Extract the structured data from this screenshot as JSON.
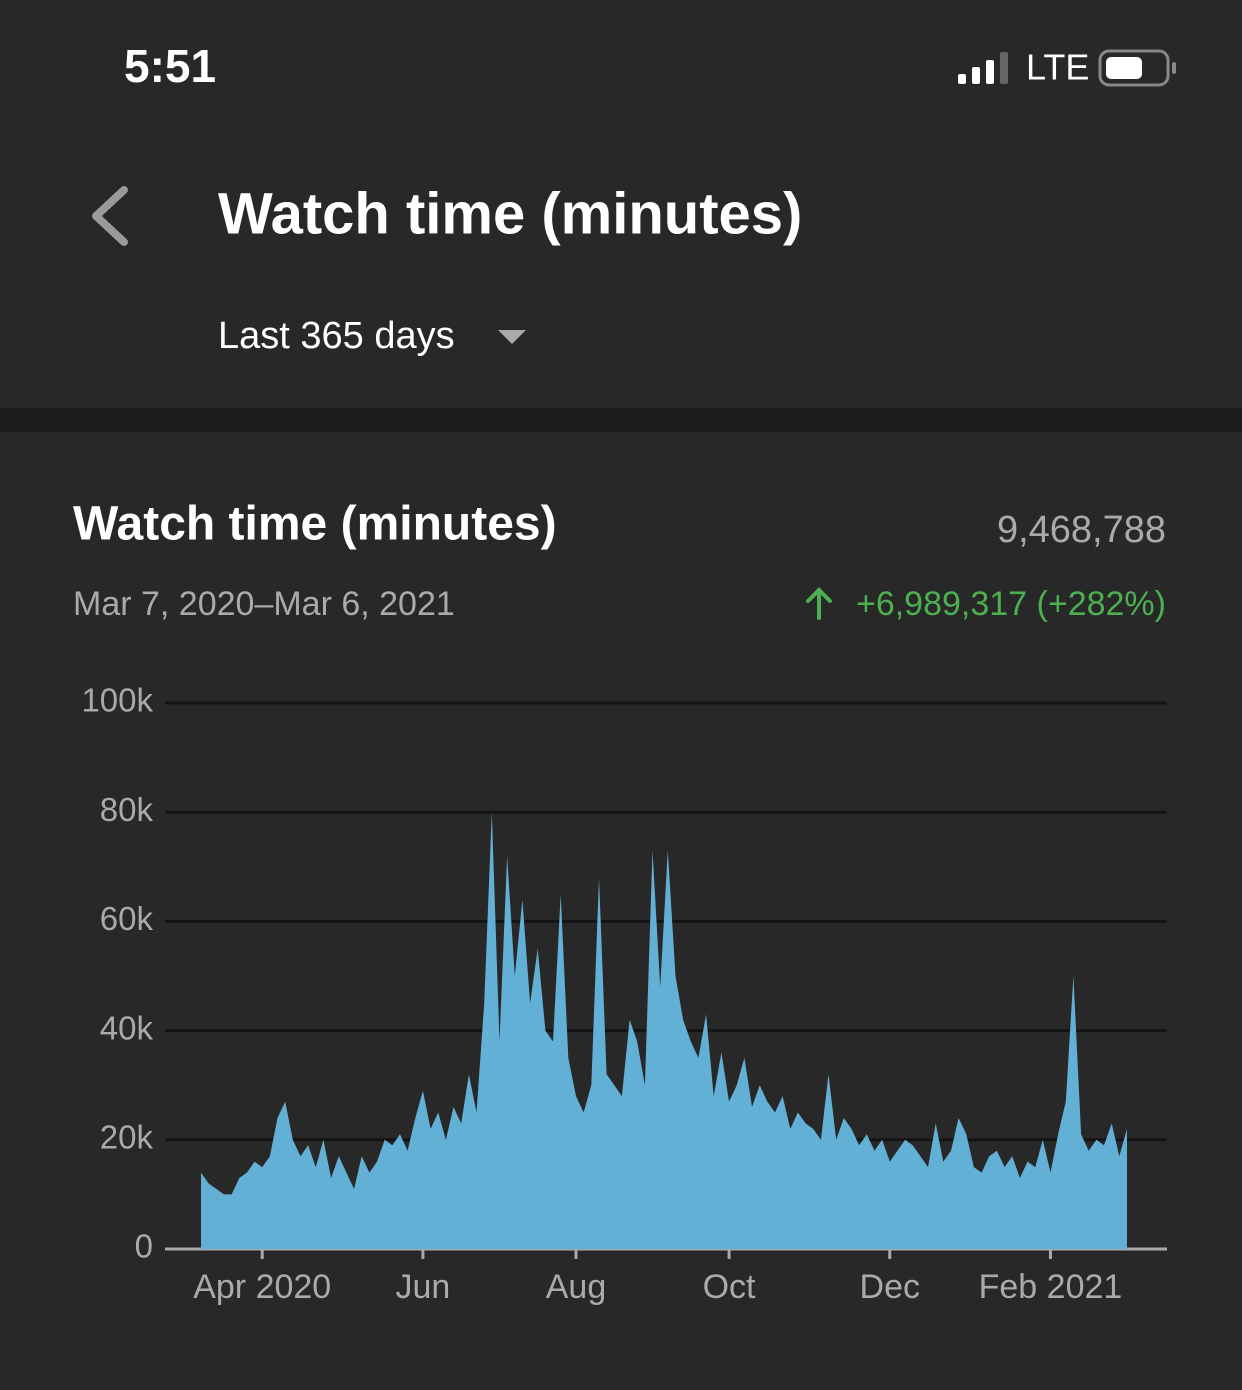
{
  "status_bar": {
    "time": "5:51",
    "network": "LTE"
  },
  "header": {
    "title": "Watch time (minutes)",
    "period": "Last 365 days"
  },
  "card": {
    "title": "Watch time (minutes)",
    "total": "9,468,788",
    "date_range": "Mar 7, 2020–Mar 6, 2021",
    "change": "+6,989,317 (+282%)"
  },
  "chart_data": {
    "type": "area",
    "color": "#62b0d6",
    "categories": [
      null,
      null,
      null,
      null,
      null,
      null,
      null,
      null,
      "Apr 2020",
      null,
      null,
      null,
      null,
      null,
      null,
      null,
      null,
      null,
      null,
      null,
      null,
      null,
      null,
      null,
      null,
      null,
      null,
      null,
      null,
      "Jun",
      null,
      null,
      null,
      null,
      null,
      null,
      null,
      null,
      null,
      null,
      null,
      null,
      null,
      null,
      null,
      null,
      null,
      null,
      null,
      "Aug",
      null,
      null,
      null,
      null,
      null,
      null,
      null,
      null,
      null,
      null,
      null,
      null,
      null,
      null,
      null,
      null,
      null,
      null,
      null,
      "Oct",
      null,
      null,
      null,
      null,
      null,
      null,
      null,
      null,
      null,
      null,
      null,
      null,
      null,
      null,
      null,
      null,
      null,
      null,
      null,
      null,
      "Dec",
      null,
      null,
      null,
      null,
      null,
      null,
      null,
      null,
      null,
      null,
      null,
      null,
      null,
      null,
      null,
      null,
      null,
      null,
      null,
      null,
      "Feb 2021",
      null,
      null,
      null,
      null,
      null,
      null,
      null,
      null,
      null,
      null
    ],
    "values": [
      14000,
      12000,
      11000,
      10000,
      10000,
      13000,
      14000,
      16000,
      15000,
      17000,
      24000,
      27000,
      20000,
      17000,
      19000,
      15000,
      20000,
      13000,
      17000,
      14000,
      11000,
      17000,
      14000,
      16000,
      20000,
      19000,
      21000,
      18000,
      24000,
      29000,
      22000,
      25000,
      20000,
      26000,
      23000,
      32000,
      25000,
      45000,
      80000,
      38000,
      72000,
      50000,
      64000,
      45000,
      55000,
      40000,
      38000,
      65000,
      35000,
      28000,
      25000,
      30000,
      68000,
      32000,
      30000,
      28000,
      42000,
      38000,
      30000,
      73000,
      48000,
      73000,
      50000,
      42000,
      38000,
      35000,
      43000,
      28000,
      36000,
      27000,
      30000,
      35000,
      26000,
      30000,
      27000,
      25000,
      28000,
      22000,
      25000,
      23000,
      22000,
      20000,
      32000,
      20000,
      24000,
      22000,
      19000,
      21000,
      18000,
      20000,
      16000,
      18000,
      20000,
      19000,
      17000,
      15000,
      23000,
      16000,
      18000,
      24000,
      21000,
      15000,
      14000,
      17000,
      18000,
      15000,
      17000,
      13000,
      16000,
      15000,
      20000,
      14000,
      21000,
      27000,
      50000,
      21000,
      18000,
      20000,
      19000,
      23000,
      17000,
      22000
    ],
    "ylim": [
      0,
      100000
    ],
    "yticks": [
      0,
      {
        "value": 20000,
        "label": "20k"
      },
      {
        "value": 40000,
        "label": "40k"
      },
      {
        "value": 60000,
        "label": "60k"
      },
      {
        "value": 80000,
        "label": "80k"
      },
      {
        "value": 100000,
        "label": "100k"
      }
    ],
    "grid": true
  }
}
